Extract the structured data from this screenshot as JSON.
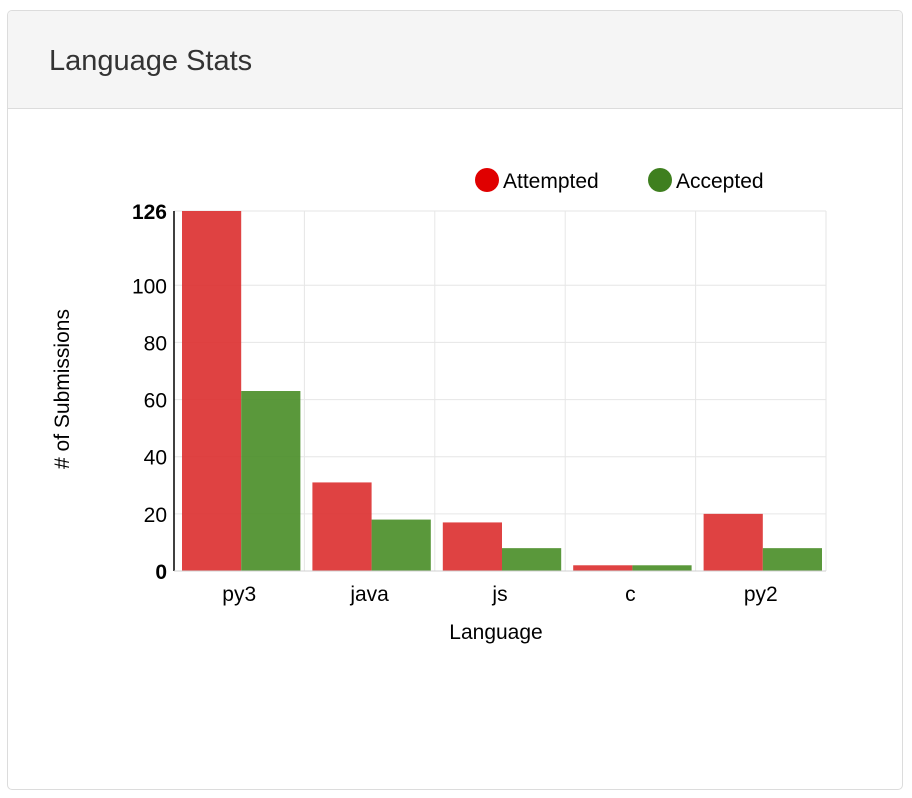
{
  "panel": {
    "title": "Language Stats"
  },
  "colors": {
    "attempted": "#dc3232",
    "accepted": "#4c8f2a",
    "attempted_legend": "#e00000",
    "accepted_legend": "#3f7f1f",
    "grid": "#e6e6e6",
    "axis": "#000000"
  },
  "chart_data": {
    "type": "bar",
    "categories": [
      "py3",
      "java",
      "js",
      "c",
      "py2"
    ],
    "series": [
      {
        "name": "Attempted",
        "values": [
          126,
          31,
          17,
          2,
          20
        ]
      },
      {
        "name": "Accepted",
        "values": [
          63,
          18,
          8,
          2,
          8
        ]
      }
    ],
    "xlabel": "Language",
    "ylabel": "# of Submissions",
    "ylim": [
      0,
      126
    ],
    "yticks": [
      0,
      20,
      40,
      60,
      80,
      100,
      126
    ],
    "yticks_bold": [
      0,
      126
    ],
    "grid": true,
    "legend_position": "top-right"
  }
}
